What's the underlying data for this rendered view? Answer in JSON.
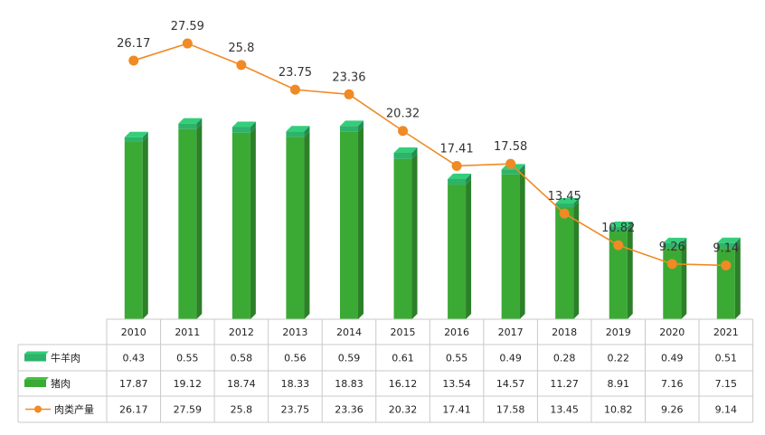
{
  "chart_data": {
    "type": "bar",
    "categories": [
      "2010",
      "2011",
      "2012",
      "2013",
      "2014",
      "2015",
      "2016",
      "2017",
      "2018",
      "2019",
      "2020",
      "2021"
    ],
    "series": [
      {
        "name": "牛羊肉",
        "kind": "stacked-bar",
        "color": "#2db36a",
        "values": [
          0.43,
          0.55,
          0.58,
          0.56,
          0.59,
          0.61,
          0.55,
          0.49,
          0.28,
          0.22,
          0.49,
          0.51
        ],
        "labels": [
          "0.43",
          "0.55",
          "0.58",
          "0.56",
          "0.59",
          "0.61",
          "0.55",
          "0.49",
          "0.28",
          "0.22",
          "0.49",
          "0.51"
        ]
      },
      {
        "name": "猪肉",
        "kind": "stacked-bar",
        "color": "#3aaa35",
        "values": [
          17.87,
          19.12,
          18.74,
          18.33,
          18.83,
          16.12,
          13.54,
          14.57,
          11.27,
          8.91,
          7.16,
          7.15
        ],
        "labels": [
          "17.87",
          "19.12",
          "18.74",
          "18.33",
          "18.83",
          "16.12",
          "13.54",
          "14.57",
          "11.27",
          "8.91",
          "7.16",
          "7.15"
        ]
      },
      {
        "name": "肉类产量",
        "kind": "line",
        "color": "#f08a24",
        "values": [
          26.17,
          27.59,
          25.8,
          23.75,
          23.36,
          20.32,
          17.41,
          17.58,
          13.45,
          10.82,
          9.26,
          9.14
        ],
        "labels": [
          "26.17",
          "27.59",
          "25.8",
          "23.75",
          "23.36",
          "20.32",
          "17.41",
          "17.58",
          "13.45",
          "10.82",
          "9.26",
          "9.14"
        ]
      }
    ],
    "legend_position": "table-left",
    "grid": false,
    "data_table": true
  }
}
